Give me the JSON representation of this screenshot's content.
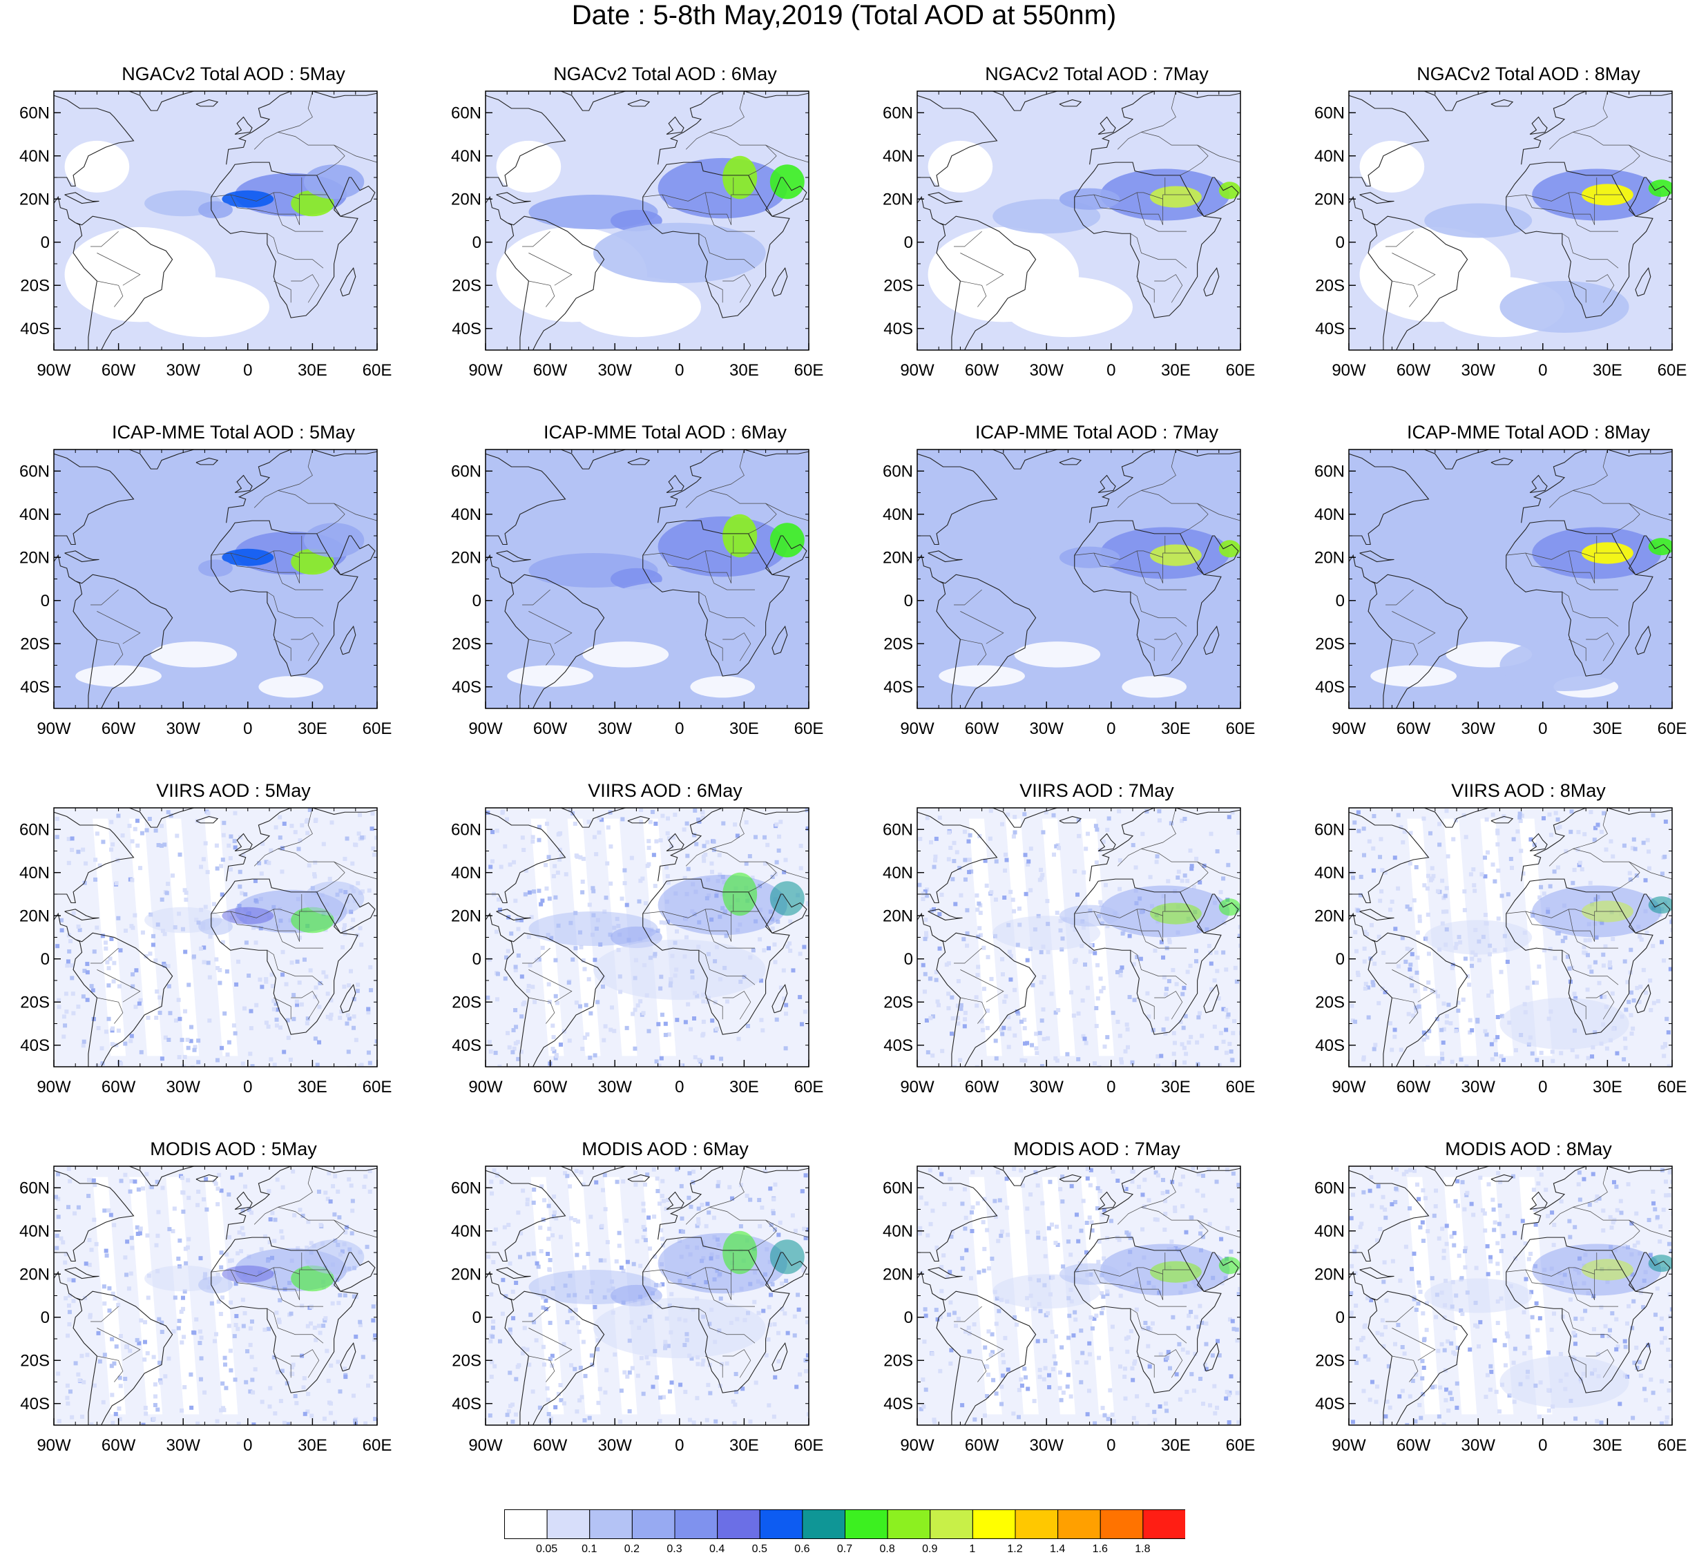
{
  "title": "Date : 5-8th May,2019 (Total AOD at 550nm)",
  "lat_ticks": [
    "60N",
    "40N",
    "20N",
    "0",
    "20S",
    "40S"
  ],
  "lon_ticks": [
    "90W",
    "60W",
    "30W",
    "0",
    "30E",
    "60E"
  ],
  "extent": {
    "lon": [
      -90,
      60
    ],
    "lat": [
      -50,
      70
    ]
  },
  "rows": [
    {
      "source": "NGACv2",
      "titles": [
        "NGACv2 Total AOD : 5May",
        "NGACv2 Total AOD : 6May",
        "NGACv2 Total AOD : 7May",
        "NGACv2 Total AOD : 8May"
      ]
    },
    {
      "source": "ICAP-MME",
      "titles": [
        "ICAP-MME Total AOD : 5May",
        "ICAP-MME Total AOD : 6May",
        "ICAP-MME Total AOD : 7May",
        "ICAP-MME Total AOD : 8May"
      ]
    },
    {
      "source": "VIIRS",
      "titles": [
        "VIIRS AOD : 5May",
        "VIIRS AOD : 6May",
        "VIIRS AOD : 7May",
        "VIIRS AOD : 8May"
      ]
    },
    {
      "source": "MODIS",
      "titles": [
        "MODIS AOD : 5May",
        "MODIS AOD : 6May",
        "MODIS AOD : 7May",
        "MODIS AOD : 8May"
      ]
    }
  ],
  "colorbar": {
    "labels": [
      "0.05",
      "0.1",
      "0.2",
      "0.3",
      "0.4",
      "0.5",
      "0.6",
      "0.7",
      "0.8",
      "0.9",
      "1",
      "1.2",
      "1.4",
      "1.6",
      "1.8"
    ],
    "colors": [
      "#ffffff",
      "#d7defa",
      "#b4c3f5",
      "#97aaf2",
      "#7f92ee",
      "#6b6fe6",
      "#0d5cf2",
      "#0f9696",
      "#3cf020",
      "#8cf020",
      "#c8f048",
      "#ffff00",
      "#ffc800",
      "#ffa000",
      "#ff7300",
      "#ff1e14"
    ]
  }
}
